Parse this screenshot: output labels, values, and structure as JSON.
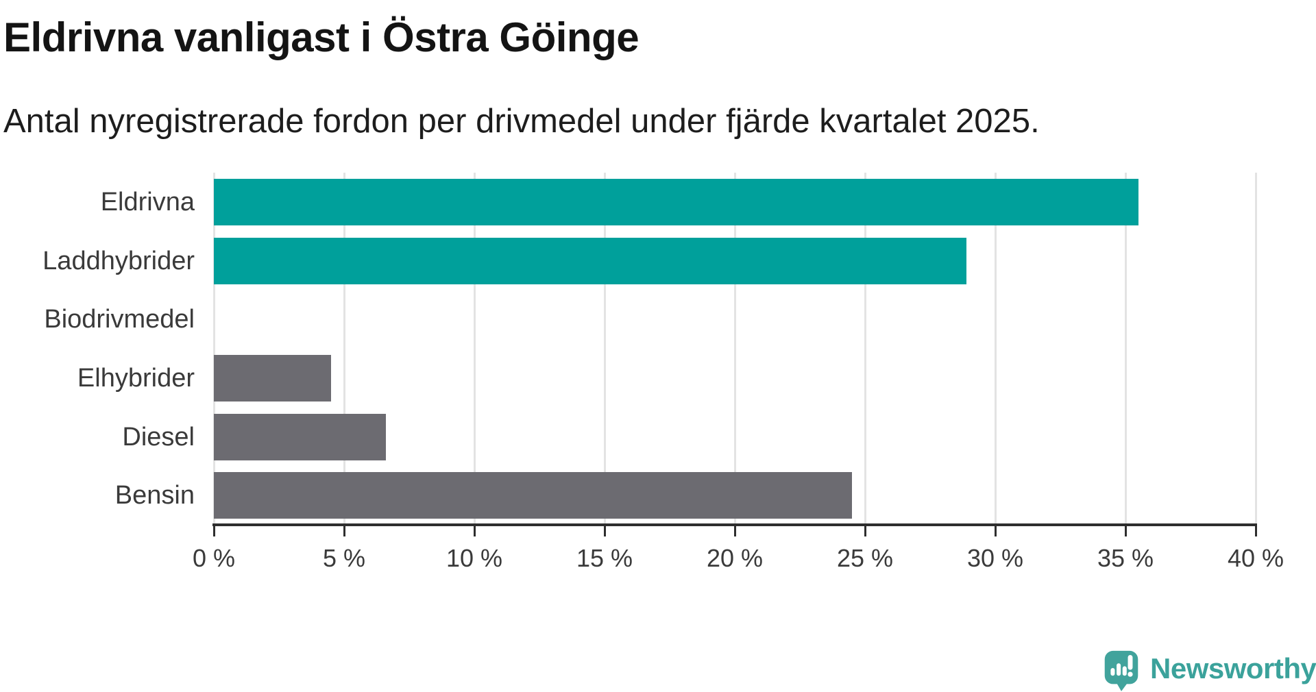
{
  "header": {
    "title": "Eldrivna vanligast i Östra Göinge",
    "subtitle": "Antal nyregistrerade fordon per drivmedel under fjärde kvartalet 2025."
  },
  "chart_data": {
    "type": "bar",
    "orientation": "horizontal",
    "title": "Eldrivna vanligast i Östra Göinge",
    "subtitle": "Antal nyregistrerade fordon per drivmedel under fjärde kvartalet 2025.",
    "categories": [
      "Eldrivna",
      "Laddhybrider",
      "Biodrivmedel",
      "Elhybrider",
      "Diesel",
      "Bensin"
    ],
    "values": [
      35.5,
      28.9,
      0,
      4.5,
      6.6,
      24.5
    ],
    "value_unit": "%",
    "bar_colors": [
      "#00A09B",
      "#00A09B",
      "#6C6B71",
      "#6C6B71",
      "#6C6B71",
      "#6C6B71"
    ],
    "xlim": [
      0,
      40
    ],
    "x_ticks": [
      0,
      5,
      10,
      15,
      20,
      25,
      30,
      35,
      40
    ],
    "x_tick_suffix": " %",
    "xlabel": "",
    "ylabel": "",
    "grid": "vertical gridlines behind bars",
    "legend": "none"
  },
  "branding": {
    "logo_text": "Newsworthy",
    "logo_icon": "newsworthy-speech-bubble-bar-chart-icon"
  },
  "colors": {
    "bar_teal": "#00A09B",
    "bar_gray": "#6C6B71",
    "gridline": "#E3E3E3",
    "axis": "#2E2E2E",
    "title_text": "#141414",
    "label_text": "#3A3A3A",
    "logo_teal": "#3BA29B",
    "background": "#FFFFFF"
  }
}
